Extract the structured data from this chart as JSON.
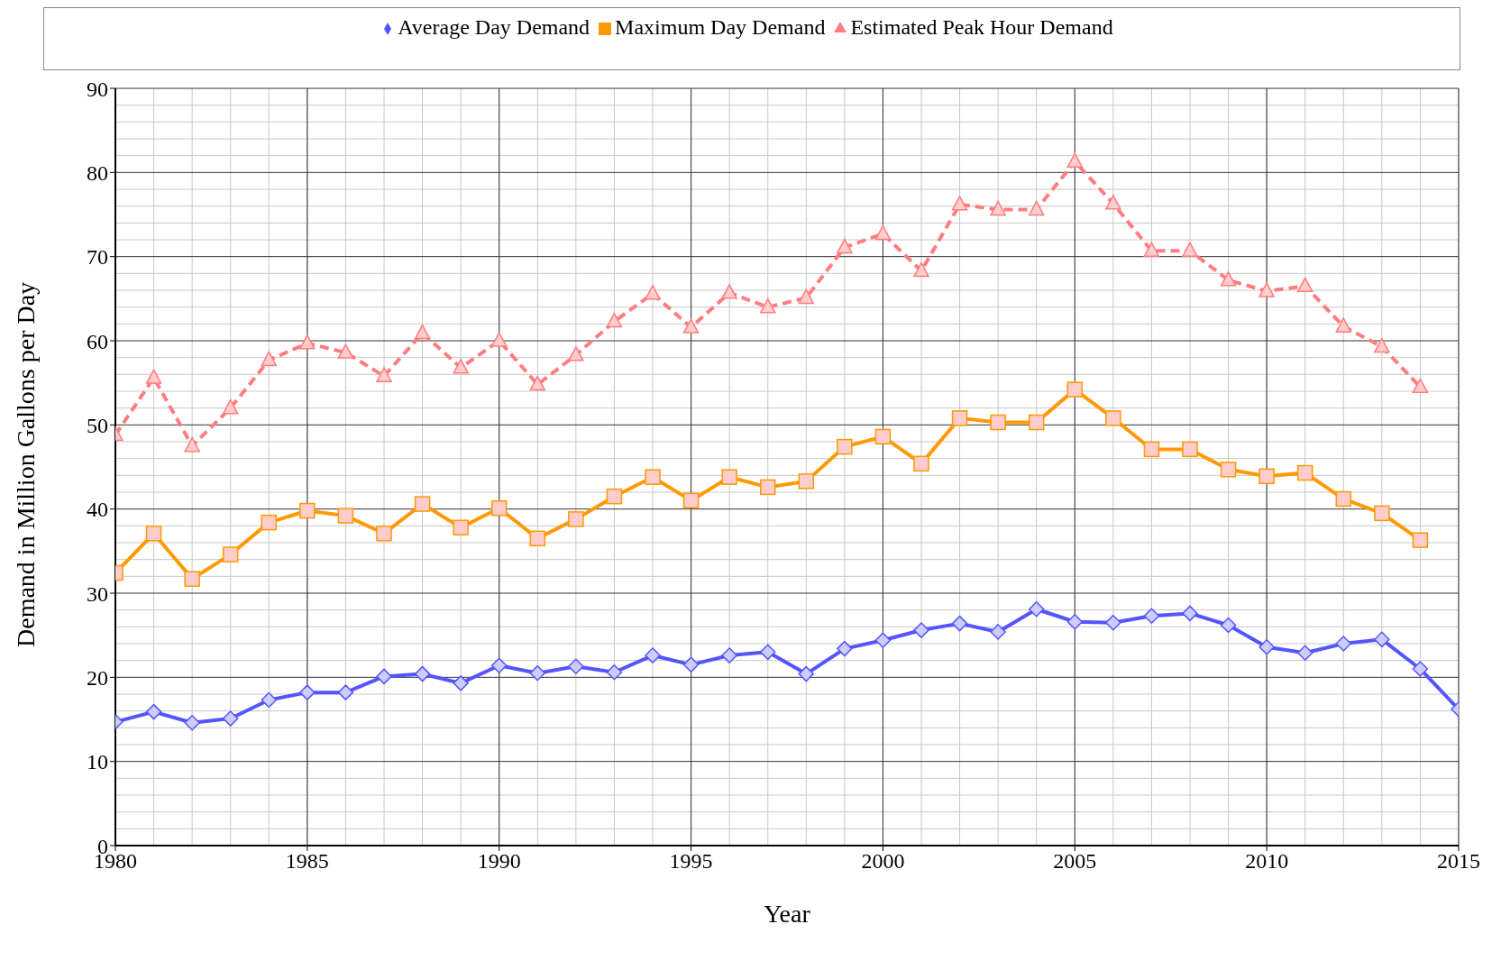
{
  "chart_data": {
    "type": "line",
    "xlabel": "Year",
    "ylabel": "Demand in Million Gallons per Day",
    "x": [
      1980,
      1981,
      1982,
      1983,
      1984,
      1985,
      1986,
      1987,
      1988,
      1989,
      1990,
      1991,
      1992,
      1993,
      1994,
      1995,
      1996,
      1997,
      1998,
      1999,
      2000,
      2001,
      2002,
      2003,
      2004,
      2005,
      2006,
      2007,
      2008,
      2009,
      2010,
      2011,
      2012,
      2013,
      2014,
      2015
    ],
    "series": [
      {
        "name": "Average Day Demand",
        "color": "#5555ff",
        "marker": "diamond",
        "line_style": "solid",
        "values": [
          14.7,
          15.9,
          14.6,
          15.1,
          17.3,
          18.2,
          18.2,
          20.1,
          20.4,
          19.3,
          21.4,
          20.5,
          21.3,
          20.6,
          22.6,
          21.5,
          22.6,
          23.0,
          20.4,
          23.4,
          24.4,
          25.6,
          26.4,
          25.4,
          28.1,
          26.6,
          26.5,
          27.3,
          27.6,
          26.2,
          23.6,
          22.9,
          24.0,
          24.5,
          21.0,
          16.2
        ]
      },
      {
        "name": "Maximum Day Demand",
        "color": "#ff9900",
        "marker": "square",
        "line_style": "solid",
        "values": [
          32.4,
          37.1,
          31.7,
          34.6,
          38.4,
          39.8,
          39.2,
          37.1,
          40.6,
          37.8,
          40.1,
          36.5,
          38.8,
          41.5,
          43.8,
          41.0,
          43.8,
          42.6,
          43.3,
          47.4,
          48.6,
          45.4,
          50.8,
          50.3,
          50.3,
          54.2,
          50.8,
          47.1,
          47.1,
          44.7,
          43.9,
          44.3,
          41.2,
          39.5,
          36.3,
          null
        ]
      },
      {
        "name": "Estimated Peak Hour Demand",
        "color": "#ff7c80",
        "marker": "triangle",
        "line_style": "dashed",
        "values": [
          48.8,
          55.6,
          47.5,
          52.0,
          57.7,
          59.7,
          58.6,
          55.8,
          60.9,
          56.8,
          60.0,
          54.8,
          58.3,
          62.3,
          65.6,
          61.6,
          65.7,
          64.0,
          65.1,
          71.1,
          72.7,
          68.3,
          76.2,
          75.6,
          75.6,
          81.3,
          76.3,
          70.7,
          70.7,
          67.2,
          65.9,
          66.5,
          61.7,
          59.3,
          54.5,
          null
        ]
      }
    ],
    "xlim": [
      1980,
      2015
    ],
    "xticks": [
      1980,
      1985,
      1990,
      1995,
      2000,
      2005,
      2010,
      2015
    ],
    "ylim": [
      0,
      90
    ],
    "yticks": [
      0,
      10,
      20,
      30,
      40,
      50,
      60,
      70,
      80,
      90
    ],
    "grid": true,
    "legend": "top"
  }
}
